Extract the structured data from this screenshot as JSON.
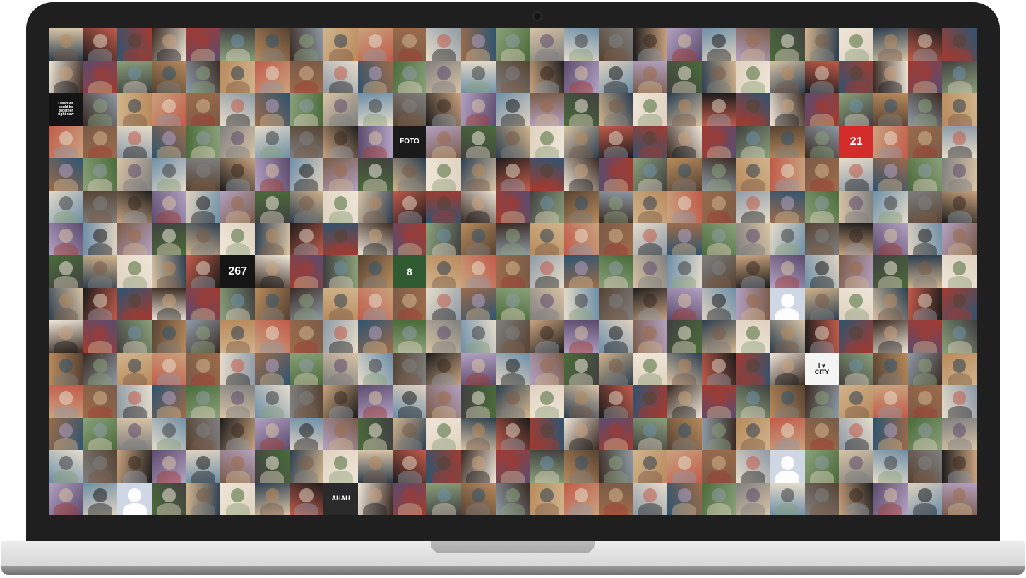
{
  "device": {
    "bezel_color": "#1f1f1f",
    "base_color": "#e3e3e3"
  },
  "mosaic": {
    "columns": 27,
    "rows": 15,
    "palette": [
      "#3a2a22",
      "#7a5b48",
      "#c9a27e",
      "#2c3e50",
      "#8e9aa6",
      "#d8c3a5",
      "#4a6b3a",
      "#a33a2f",
      "#e6dccb",
      "#5c4b6e",
      "#1c1c1c",
      "#b88a5c",
      "#6d8fa8",
      "#d1b48c",
      "#404040",
      "#9c6b4a",
      "#e0d2c0",
      "#2e5470",
      "#c25b4a",
      "#7f7f7f",
      "#efe6d8",
      "#564232",
      "#8aa07a",
      "#b3a1c2"
    ],
    "text_tiles": [
      {
        "index": 54,
        "text": "I wish we\ncould be\ntogether\nright now",
        "bg": "#141414",
        "fg": "#ffffff",
        "size": 5
      },
      {
        "index": 194,
        "text": "267",
        "bg": "#151515",
        "fg": "#ffffff",
        "size": 16
      },
      {
        "index": 91,
        "text": "FOTO",
        "bg": "#1a1a1a",
        "fg": "#ffffff",
        "size": 10
      },
      {
        "index": 104,
        "text": "21",
        "bg": "#d42b2b",
        "fg": "#ffffff",
        "size": 16
      },
      {
        "index": 292,
        "text": "I ♥\nCITY",
        "bg": "#f4f4f4",
        "fg": "#222222",
        "size": 9
      },
      {
        "index": 386,
        "text": "AHAH",
        "bg": "#2a2a2a",
        "fg": "#ffffff",
        "size": 9
      },
      {
        "index": 199,
        "text": "8",
        "bg": "#2f5a32",
        "fg": "#ffffff",
        "size": 14
      }
    ],
    "placeholder_tiles": [
      237,
      372,
      380
    ],
    "placeholder_bg": "#cfd6e4",
    "placeholder_fg": "#ffffff"
  }
}
